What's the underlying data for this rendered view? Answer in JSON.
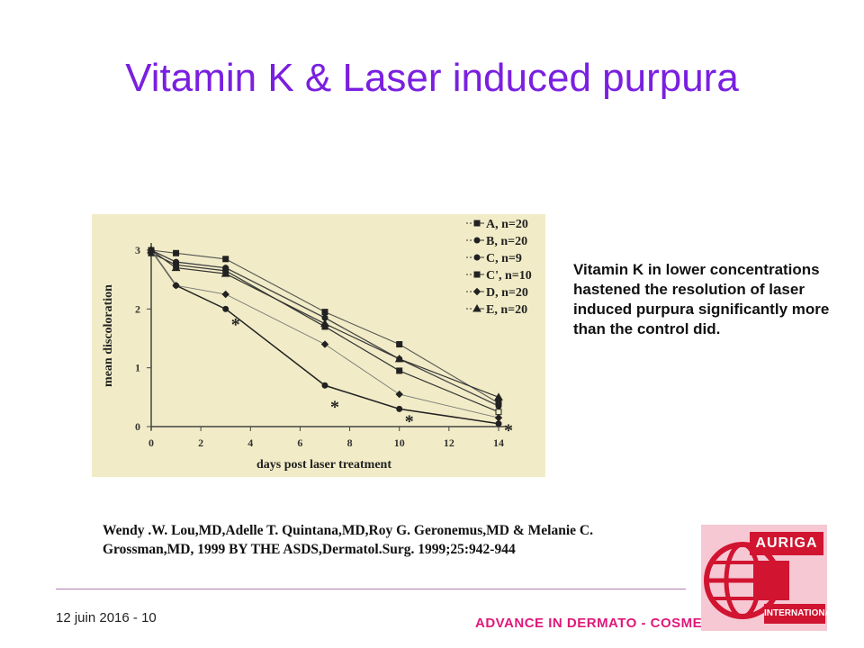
{
  "slide": {
    "title": "Vitamin K & Laser induced purpura",
    "note": "Vitamin K in lower concentrations hastened the resolution of laser induced purpura significantly more than the control did.",
    "reference_line1": "Wendy .W. Lou,MD,Adelle T. Quintana,MD,Roy G. Geronemus,MD & Melanie C.",
    "reference_line2": "Grossman,MD, 1999 BY THE ASDS,Dermatol.Surg. 1999;25:942-944",
    "footer_date": "12 juin 2016 - 10",
    "footer_brand": "ADVANCE IN DERMATO - COSMETOLOGY",
    "logo_text": "AURIGA",
    "logo_sub": "INTERNATIONAL",
    "colors": {
      "title": "#7a1fe0",
      "brand": "#e0187a",
      "logo": "#d11430",
      "panel": "#f1ecc7"
    }
  },
  "chart_data": {
    "type": "line",
    "xlabel": "days post laser treatment",
    "ylabel": "mean discoloration",
    "xlim": [
      0,
      14
    ],
    "ylim": [
      0,
      3
    ],
    "xticks": [
      0,
      2,
      4,
      6,
      8,
      10,
      12,
      14
    ],
    "yticks": [
      0,
      1,
      2,
      3
    ],
    "grid": false,
    "legend_position": "top-right",
    "significance_markers": [
      {
        "label": "*",
        "x": 3,
        "y": 1.7
      },
      {
        "label": "*",
        "x": 7,
        "y": 0.3
      },
      {
        "label": "*",
        "x": 10,
        "y": 0.05
      },
      {
        "label": "*",
        "x": 14,
        "y": -0.1
      }
    ],
    "series": [
      {
        "name": "A, n=20",
        "marker": "square",
        "x": [
          0,
          1,
          3,
          7,
          10,
          14
        ],
        "y": [
          3.0,
          2.95,
          2.85,
          1.95,
          1.4,
          0.4
        ]
      },
      {
        "name": "B, n=20",
        "marker": "circle",
        "x": [
          0,
          1,
          3,
          7,
          10,
          14
        ],
        "y": [
          3.0,
          2.8,
          2.7,
          1.85,
          1.15,
          0.35
        ]
      },
      {
        "name": "C, n=9",
        "marker": "circle",
        "x": [
          0,
          1,
          3,
          7,
          10,
          14
        ],
        "y": [
          3.0,
          2.4,
          2.0,
          0.7,
          0.3,
          0.05
        ]
      },
      {
        "name": "C', n=10",
        "marker": "square",
        "x": [
          0,
          1,
          3,
          7,
          10,
          14
        ],
        "y": [
          2.95,
          2.75,
          2.65,
          1.7,
          0.95,
          0.25
        ]
      },
      {
        "name": "D, n=20",
        "marker": "diamond",
        "x": [
          0,
          1,
          3,
          7,
          10,
          14
        ],
        "y": [
          3.0,
          2.4,
          2.25,
          1.4,
          0.55,
          0.15
        ]
      },
      {
        "name": "E, n=20",
        "marker": "triangle",
        "x": [
          0,
          1,
          3,
          7,
          10,
          14
        ],
        "y": [
          3.0,
          2.7,
          2.6,
          1.75,
          1.15,
          0.5
        ]
      }
    ]
  }
}
